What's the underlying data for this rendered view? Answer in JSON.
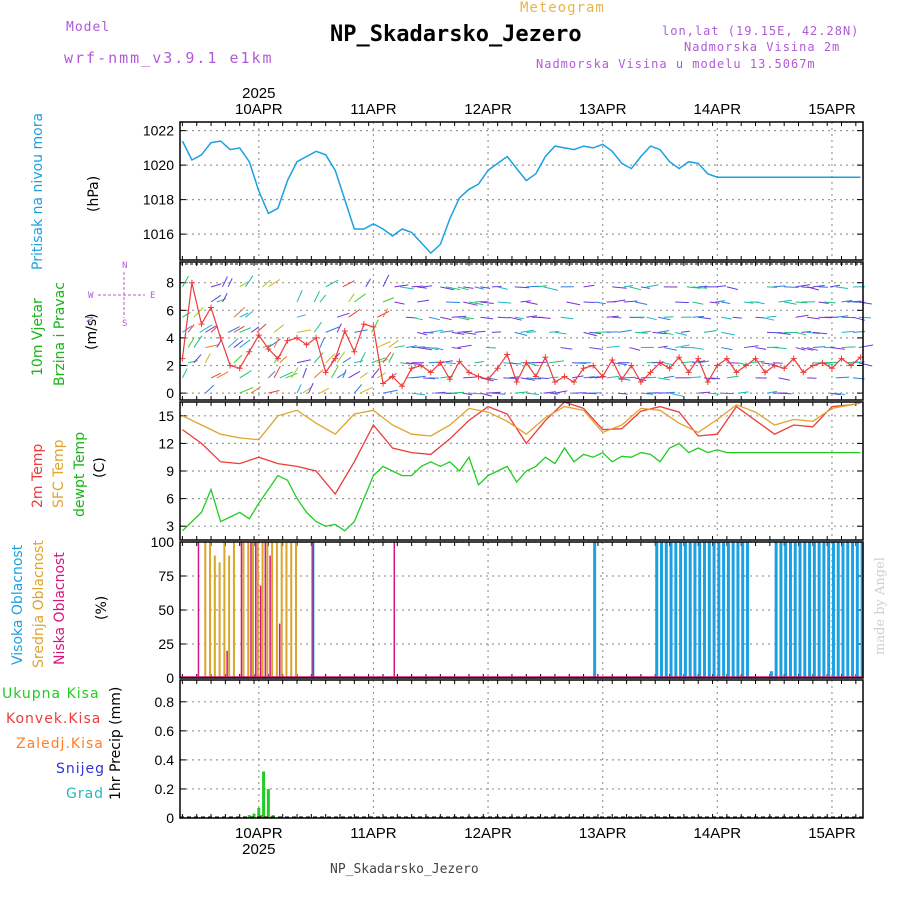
{
  "header": {
    "model_label": "Model",
    "model_name": "wrf-nmm_v3.9.1 e1km",
    "product": "Meteogram",
    "station": "NP_Skadarsko_Jezero",
    "lonlat": "lon,lat (19.15E, 42.28N)",
    "elevation": "Nadmorska Visina 2m",
    "model_elevation": "Nadmorska Visina u modelu 13.5067m",
    "footer_station": "NP_Skadarsko_Jezero",
    "watermark": "made by Angel"
  },
  "colors": {
    "pressure": "#1ba1e2",
    "wind_green": "#18b418",
    "t2m": "#ee3b3b",
    "sfc": "#e0a42e",
    "dewpt": "#22cc22",
    "cloud_high": "#1ba1e2",
    "cloud_mid": "#d9a52a",
    "cloud_low": "#d6157f",
    "precip_total": "#22cc22",
    "precip_conv": "#ee3b3b",
    "precip_frz": "#ff7f24",
    "snow": "#3333dd",
    "graupel": "#22bbbb",
    "purple_text": "#b05bd6"
  },
  "chart_data": {
    "type": "line",
    "year_label": "2025",
    "x_categories": [
      "10APR",
      "11APR",
      "12APR",
      "13APR",
      "14APR",
      "15APR"
    ],
    "x_range_hours": [
      -4.5,
      138.5
    ],
    "panels": [
      {
        "id": "pressure",
        "ylabel_lines": [
          "Pritisak na nivou mora"
        ],
        "units": "(hPa)",
        "ylim": [
          1014.5,
          1022.5
        ],
        "yticks": [
          1016,
          1018,
          1020,
          1022
        ],
        "series": [
          {
            "key": "pressure",
            "hours": [
              -4,
              -2,
              0,
              2,
              4,
              6,
              8,
              10,
              12,
              14,
              16,
              18,
              20,
              22,
              24,
              26,
              28,
              30,
              32,
              34,
              36,
              38,
              40,
              42,
              44,
              46,
              48,
              50,
              52,
              54,
              56,
              58,
              60,
              62,
              64,
              66,
              68,
              70,
              72,
              74,
              76,
              78,
              80,
              82,
              84,
              86,
              88,
              90,
              92,
              94,
              96,
              98,
              100,
              102,
              104,
              106,
              108,
              110,
              112,
              114,
              116,
              118,
              120,
              122,
              124,
              126,
              128,
              130,
              132,
              134,
              136,
              138
            ],
            "values": [
              1021.4,
              1020.3,
              1020.6,
              1021.3,
              1021.4,
              1020.9,
              1021.0,
              1020.2,
              1018.5,
              1017.2,
              1017.5,
              1019.1,
              1020.2,
              1020.5,
              1020.8,
              1020.6,
              1019.7,
              1018.0,
              1016.3,
              1016.3,
              1016.6,
              1016.3,
              1015.9,
              1016.3,
              1016.1,
              1015.5,
              1014.9,
              1015.4,
              1016.9,
              1018.1,
              1018.6,
              1018.9,
              1019.7,
              1020.1,
              1020.5,
              1019.8,
              1019.1,
              1019.5,
              1020.5,
              1021.1,
              1021.0,
              1020.9,
              1021.1,
              1021.0,
              1021.2,
              1020.8,
              1020.1,
              1019.8,
              1020.5,
              1021.1,
              1020.9,
              1020.2,
              1019.8,
              1020.2,
              1020.1,
              1019.5,
              1019.3,
              1019.3,
              1019.3,
              1019.3,
              1019.3,
              1019.3,
              1019.3,
              1019.3,
              1019.3,
              1019.3,
              1019.3,
              1019.3,
              1019.3,
              1019.3,
              1019.3,
              1019.3
            ],
            "note": "values up to hour 138"
          }
        ]
      },
      {
        "id": "wind",
        "ylabel_lines": [
          "10m Vjetar",
          "Brzina i Pravac"
        ],
        "units": "(m/s)",
        "ylim": [
          -0.5,
          9.5
        ],
        "yticks": [
          0,
          2,
          4,
          6,
          8
        ],
        "compass": {
          "n": "N",
          "s": "S",
          "e": "E",
          "w": "W"
        },
        "series": [
          {
            "key": "t2m",
            "name": "",
            "hours": [
              -4,
              -2,
              0,
              2,
              4,
              6,
              8,
              10,
              12,
              14,
              16,
              18,
              20,
              22,
              24,
              26,
              28,
              30,
              32,
              34,
              36,
              38,
              40,
              42,
              44,
              46,
              48,
              50,
              52,
              54,
              56,
              58,
              60,
              62,
              64,
              66,
              68,
              70,
              72,
              74,
              76,
              78,
              80,
              82,
              84,
              86,
              88,
              90,
              92,
              94,
              96,
              98,
              100,
              102,
              104,
              106,
              108,
              110,
              112,
              114,
              116,
              118,
              120,
              122,
              124,
              126,
              128,
              130,
              132,
              134,
              136,
              138
            ],
            "values": [
              2.5,
              8.0,
              5.0,
              6.2,
              4.0,
              2.0,
              1.8,
              3.0,
              4.2,
              3.2,
              2.5,
              3.8,
              4.0,
              3.5,
              4.0,
              1.5,
              2.5,
              4.5,
              3.0,
              5.0,
              4.8,
              0.7,
              1.2,
              0.5,
              1.8,
              2.0,
              1.5,
              2.2,
              1.0,
              2.3,
              1.5,
              1.2,
              1.0,
              1.8,
              2.8,
              0.8,
              2.2,
              1.2,
              2.6,
              0.8,
              1.2,
              0.8,
              1.8,
              2.0,
              1.2,
              2.4,
              1.0,
              2.0,
              0.8,
              1.5,
              2.2,
              1.8,
              2.6,
              1.5,
              2.5,
              0.8,
              2.0,
              2.5,
              1.5,
              2.0,
              2.5,
              1.5,
              2.0,
              1.8,
              2.5,
              1.5,
              2.0,
              2.2,
              1.8,
              2.5,
              2.0,
              2.6
            ]
          }
        ]
      },
      {
        "id": "temperature",
        "ylabel_lines": [
          "2m Temp",
          "SFC Temp",
          "dewpt Temp"
        ],
        "units": "(C)",
        "ylim": [
          1.5,
          16.5
        ],
        "yticks": [
          3,
          6,
          9,
          12,
          15
        ],
        "series": [
          {
            "key": "t2m",
            "name": "2m Temp",
            "hours": [
              -4,
              0,
              4,
              8,
              12,
              16,
              20,
              24,
              28,
              32,
              36,
              40,
              44,
              48,
              52,
              56,
              60,
              64,
              68,
              72,
              76,
              80,
              84,
              88,
              92,
              96,
              100,
              104,
              108,
              112,
              116,
              120,
              124,
              128,
              132,
              136,
              138
            ],
            "values": [
              13.5,
              12.0,
              10.0,
              9.8,
              10.5,
              9.8,
              9.5,
              9.0,
              6.5,
              10.0,
              14.0,
              11.5,
              11.0,
              10.8,
              12.5,
              14.5,
              16.0,
              15.2,
              12.0,
              14.5,
              16.5,
              15.8,
              13.5,
              13.6,
              15.5,
              16.0,
              15.4,
              12.8,
              13.0,
              16.0,
              14.5,
              13.0,
              14.0,
              13.8,
              16.0,
              16.2,
              16.4
            ]
          },
          {
            "key": "sfc",
            "name": "SFC Temp",
            "hours": [
              -4,
              0,
              4,
              8,
              12,
              16,
              20,
              24,
              28,
              32,
              36,
              40,
              44,
              48,
              52,
              56,
              60,
              64,
              68,
              72,
              76,
              80,
              84,
              88,
              92,
              96,
              100,
              104,
              108,
              112,
              116,
              120,
              124,
              128,
              132,
              136,
              138
            ],
            "values": [
              15.0,
              14.0,
              13.0,
              12.6,
              12.4,
              15.0,
              15.6,
              14.2,
              13.0,
              15.2,
              15.6,
              14.0,
              13.0,
              12.8,
              14.0,
              15.8,
              15.4,
              14.4,
              13.0,
              14.8,
              16.0,
              15.6,
              13.2,
              14.0,
              15.8,
              15.6,
              14.2,
              13.2,
              14.6,
              16.2,
              15.4,
              14.0,
              14.6,
              14.4,
              15.8,
              16.2,
              16.4
            ]
          },
          {
            "key": "dewpt",
            "name": "dewpt Temp",
            "hours": [
              -4,
              -2,
              0,
              2,
              4,
              6,
              8,
              10,
              12,
              14,
              16,
              18,
              20,
              22,
              24,
              26,
              28,
              30,
              32,
              34,
              36,
              38,
              40,
              42,
              44,
              46,
              48,
              50,
              52,
              54,
              56,
              58,
              60,
              62,
              64,
              66,
              68,
              70,
              72,
              74,
              76,
              78,
              80,
              82,
              84,
              86,
              88,
              90,
              92,
              94,
              96,
              98,
              100,
              102,
              104,
              106,
              108,
              110,
              112,
              114,
              116,
              118,
              120,
              122,
              124,
              126,
              128,
              130,
              132,
              134,
              136,
              138
            ],
            "values": [
              2.5,
              3.5,
              4.5,
              7.0,
              3.5,
              4.0,
              4.5,
              3.8,
              5.5,
              7.0,
              8.5,
              8.0,
              6.0,
              4.5,
              3.5,
              3.0,
              3.2,
              2.5,
              3.5,
              6.0,
              8.5,
              9.5,
              9.0,
              8.5,
              8.5,
              9.5,
              10.0,
              9.5,
              10.0,
              9.0,
              10.5,
              7.5,
              8.5,
              9.0,
              9.5,
              7.8,
              9.0,
              9.5,
              10.5,
              9.8,
              11.5,
              10.0,
              10.8,
              10.5,
              11.0,
              10.0,
              10.6,
              10.5,
              11.0,
              10.8,
              10.0,
              11.5,
              12.0,
              11.0,
              11.5,
              11.0,
              11.3,
              11.0,
              11.0,
              11.0,
              11.0,
              11.0,
              11.0,
              11.0,
              11.0,
              11.0,
              11.0,
              11.0,
              11.0,
              11.0,
              11.0,
              11.0
            ]
          }
        ]
      },
      {
        "id": "clouds",
        "type": "bar",
        "ylabel_lines": [
          "Visoka Oblacnost",
          "Srednja Oblacnost",
          "Niska Oblacnost"
        ],
        "units": "(%)",
        "ylim": [
          0,
          100
        ],
        "yticks": [
          0,
          25,
          50,
          75,
          100
        ],
        "bars_low": {
          "hours": [
            -1,
            5,
            8,
            10,
            11,
            12,
            13,
            14,
            16,
            23,
            40
          ],
          "values": [
            100,
            20,
            100,
            100,
            100,
            68,
            100,
            90,
            40,
            100,
            100
          ]
        },
        "bars_mid": {
          "hours": [
            1,
            2,
            3,
            4,
            5,
            6,
            7,
            9,
            10,
            11,
            12,
            13,
            14,
            15,
            16,
            17,
            18,
            19,
            20
          ],
          "values": [
            100,
            100,
            90,
            85,
            100,
            90,
            100,
            100,
            100,
            100,
            100,
            100,
            100,
            100,
            100,
            100,
            100,
            100,
            100
          ]
        },
        "bars_high": {
          "hours": [
            23,
            82,
            95,
            96,
            97,
            98,
            99,
            100,
            101,
            102,
            103,
            104,
            105,
            106,
            107,
            108,
            109,
            110,
            111,
            112,
            113,
            114,
            119,
            120,
            121,
            122,
            123,
            124,
            125,
            126,
            127,
            128,
            129,
            130,
            131,
            132,
            133,
            134,
            135,
            136,
            137,
            138
          ],
          "values": [
            100,
            100,
            100,
            100,
            100,
            100,
            100,
            100,
            100,
            100,
            100,
            100,
            100,
            100,
            100,
            100,
            100,
            100,
            100,
            100,
            100,
            100,
            5,
            100,
            100,
            100,
            100,
            100,
            100,
            100,
            100,
            100,
            100,
            100,
            100,
            100,
            100,
            100,
            100,
            100,
            100,
            100
          ]
        }
      },
      {
        "id": "precip",
        "type": "bar",
        "ylabel_lines": [
          "1hr Precip (mm)"
        ],
        "ylim": [
          0,
          0.95
        ],
        "yticks": [
          0,
          0.2,
          0.4,
          0.6,
          0.8
        ],
        "legend": [
          "Ukupna Kisa",
          "Konvek.Kisa",
          "Zaledj.Kisa",
          "Snijeg",
          "Grad"
        ],
        "bars_total": {
          "hours": [
            10,
            11,
            12,
            13,
            14,
            15
          ],
          "values": [
            0.02,
            0.03,
            0.07,
            0.32,
            0.2,
            0.02
          ]
        },
        "bars_conv": {
          "hours": [
            12,
            14
          ],
          "values": [
            0.02,
            0.01
          ]
        }
      }
    ]
  }
}
